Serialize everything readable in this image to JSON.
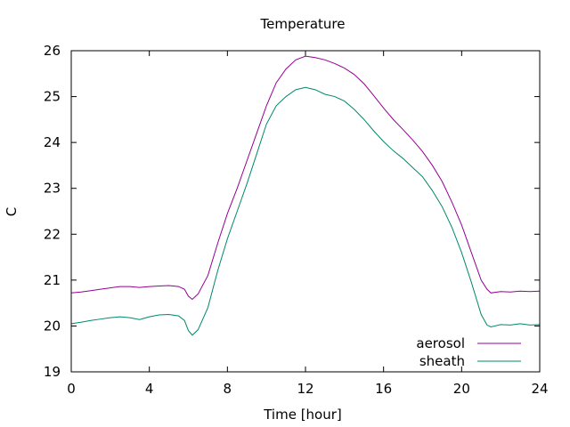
{
  "chart_data": {
    "type": "line",
    "title": "Temperature",
    "xlabel": "Time [hour]",
    "ylabel": "C",
    "xlim": [
      0,
      24
    ],
    "ylim": [
      19,
      26
    ],
    "xticks": [
      0,
      4,
      8,
      12,
      16,
      20,
      24
    ],
    "yticks": [
      19,
      20,
      21,
      22,
      23,
      24,
      25,
      26
    ],
    "grid": false,
    "legend_position": "bottom-right",
    "series": [
      {
        "name": "aerosol",
        "color": "#940094",
        "points": [
          [
            0,
            20.72
          ],
          [
            0.5,
            20.74
          ],
          [
            1,
            20.77
          ],
          [
            1.5,
            20.8
          ],
          [
            2,
            20.83
          ],
          [
            2.5,
            20.86
          ],
          [
            3,
            20.86
          ],
          [
            3.5,
            20.84
          ],
          [
            4,
            20.86
          ],
          [
            4.5,
            20.87
          ],
          [
            5,
            20.88
          ],
          [
            5.5,
            20.86
          ],
          [
            5.8,
            20.8
          ],
          [
            6,
            20.65
          ],
          [
            6.2,
            20.58
          ],
          [
            6.5,
            20.7
          ],
          [
            7,
            21.1
          ],
          [
            7.5,
            21.8
          ],
          [
            8,
            22.45
          ],
          [
            8.5,
            23.0
          ],
          [
            9,
            23.6
          ],
          [
            9.5,
            24.2
          ],
          [
            10,
            24.8
          ],
          [
            10.5,
            25.3
          ],
          [
            11,
            25.6
          ],
          [
            11.5,
            25.8
          ],
          [
            12,
            25.88
          ],
          [
            12.5,
            25.85
          ],
          [
            13,
            25.8
          ],
          [
            13.5,
            25.72
          ],
          [
            14,
            25.62
          ],
          [
            14.5,
            25.48
          ],
          [
            15,
            25.28
          ],
          [
            15.5,
            25.02
          ],
          [
            16,
            24.75
          ],
          [
            16.5,
            24.5
          ],
          [
            17,
            24.28
          ],
          [
            17.5,
            24.05
          ],
          [
            18,
            23.8
          ],
          [
            18.5,
            23.5
          ],
          [
            19,
            23.15
          ],
          [
            19.5,
            22.7
          ],
          [
            20,
            22.2
          ],
          [
            20.5,
            21.6
          ],
          [
            21,
            21.0
          ],
          [
            21.3,
            20.8
          ],
          [
            21.5,
            20.72
          ],
          [
            22,
            20.75
          ],
          [
            22.5,
            20.74
          ],
          [
            23,
            20.76
          ],
          [
            23.5,
            20.75
          ],
          [
            24,
            20.76
          ]
        ]
      },
      {
        "name": "sheath",
        "color": "#00886a",
        "points": [
          [
            0,
            20.05
          ],
          [
            0.5,
            20.08
          ],
          [
            1,
            20.12
          ],
          [
            1.5,
            20.15
          ],
          [
            2,
            20.18
          ],
          [
            2.5,
            20.2
          ],
          [
            3,
            20.18
          ],
          [
            3.5,
            20.14
          ],
          [
            4,
            20.2
          ],
          [
            4.5,
            20.24
          ],
          [
            5,
            20.25
          ],
          [
            5.5,
            20.22
          ],
          [
            5.8,
            20.12
          ],
          [
            6,
            19.9
          ],
          [
            6.2,
            19.8
          ],
          [
            6.5,
            19.92
          ],
          [
            7,
            20.4
          ],
          [
            7.5,
            21.2
          ],
          [
            8,
            21.9
          ],
          [
            8.5,
            22.5
          ],
          [
            9,
            23.1
          ],
          [
            9.5,
            23.75
          ],
          [
            10,
            24.4
          ],
          [
            10.5,
            24.8
          ],
          [
            11,
            25.0
          ],
          [
            11.5,
            25.15
          ],
          [
            12,
            25.2
          ],
          [
            12.5,
            25.15
          ],
          [
            13,
            25.05
          ],
          [
            13.5,
            25.0
          ],
          [
            14,
            24.9
          ],
          [
            14.5,
            24.72
          ],
          [
            15,
            24.5
          ],
          [
            15.5,
            24.25
          ],
          [
            16,
            24.02
          ],
          [
            16.5,
            23.82
          ],
          [
            17,
            23.65
          ],
          [
            17.5,
            23.45
          ],
          [
            18,
            23.25
          ],
          [
            18.5,
            22.95
          ],
          [
            19,
            22.6
          ],
          [
            19.5,
            22.15
          ],
          [
            20,
            21.6
          ],
          [
            20.5,
            20.95
          ],
          [
            21,
            20.25
          ],
          [
            21.3,
            20.02
          ],
          [
            21.5,
            19.98
          ],
          [
            22,
            20.03
          ],
          [
            22.5,
            20.02
          ],
          [
            23,
            20.05
          ],
          [
            23.5,
            20.02
          ],
          [
            24,
            20.03
          ]
        ]
      }
    ]
  }
}
